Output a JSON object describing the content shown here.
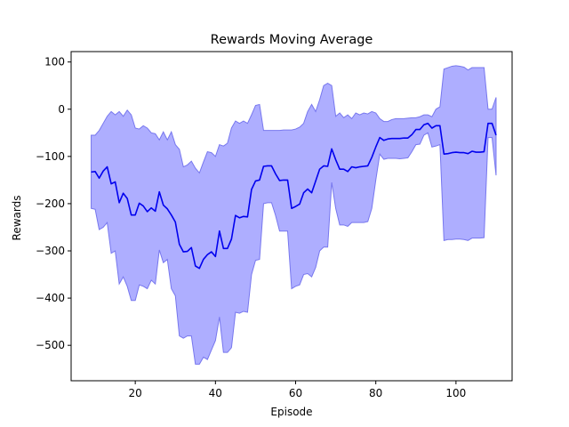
{
  "chart_data": {
    "type": "line",
    "title": "Rewards Moving Average",
    "xlabel": "Episode",
    "ylabel": "Rewards",
    "xlim": [
      4,
      114
    ],
    "ylim": [
      -575,
      122
    ],
    "xticks": [
      20,
      40,
      60,
      80,
      100
    ],
    "yticks": [
      -500,
      -400,
      -300,
      -200,
      -100,
      0,
      100
    ],
    "grid": false,
    "legend": "none",
    "colors": {
      "line": "#0000ee",
      "band_fill": "#aaaaff",
      "band_edge": "#7777ee"
    },
    "x": [
      9,
      10,
      11,
      12,
      13,
      14,
      15,
      16,
      17,
      18,
      19,
      20,
      21,
      22,
      23,
      24,
      25,
      26,
      27,
      28,
      29,
      30,
      31,
      32,
      33,
      34,
      35,
      36,
      37,
      38,
      39,
      40,
      41,
      42,
      43,
      44,
      45,
      46,
      47,
      48,
      49,
      50,
      51,
      52,
      53,
      54,
      55,
      56,
      57,
      58,
      59,
      60,
      61,
      62,
      63,
      64,
      65,
      66,
      67,
      68,
      69,
      70,
      71,
      72,
      73,
      74,
      75,
      76,
      77,
      78,
      79,
      80,
      81,
      82,
      83,
      84,
      85,
      86,
      87,
      88,
      89,
      90,
      91,
      92,
      93,
      94,
      95,
      96,
      97,
      98,
      99,
      100,
      101,
      102,
      103,
      104,
      105,
      106,
      107,
      108,
      109,
      110
    ],
    "series": [
      {
        "values": [
          -133,
          -132,
          -146,
          -131,
          -122,
          -158,
          -154,
          -198,
          -178,
          -189,
          -224,
          -224,
          -199,
          -205,
          -217,
          -209,
          -216,
          -175,
          -203,
          -211,
          -224,
          -239,
          -286,
          -302,
          -301,
          -293,
          -332,
          -337,
          -318,
          -308,
          -302,
          -312,
          -258,
          -295,
          -295,
          -275,
          -225,
          -230,
          -227,
          -228,
          -170,
          -152,
          -150,
          -121,
          -120,
          -120,
          -137,
          -151,
          -150,
          -150,
          -210,
          -206,
          -201,
          -177,
          -169,
          -177,
          -152,
          -127,
          -120,
          -121,
          -84,
          -107,
          -127,
          -127,
          -132,
          -122,
          -124,
          -122,
          -121,
          -120,
          -102,
          -80,
          -60,
          -66,
          -63,
          -62,
          -62,
          -62,
          -61,
          -61,
          -54,
          -43,
          -43,
          -33,
          -30,
          -40,
          -35,
          -35,
          -95,
          -94,
          -92,
          -91,
          -92,
          -92,
          -94,
          -89,
          -91,
          -91,
          -90,
          -30,
          -30,
          -55
        ],
        "upper": [
          -55,
          -55,
          -45,
          -30,
          -15,
          -5,
          -12,
          -5,
          -15,
          -2,
          -12,
          -40,
          -42,
          -35,
          -40,
          -50,
          -52,
          -65,
          -48,
          -65,
          -48,
          -75,
          -85,
          -122,
          -118,
          -110,
          -125,
          -135,
          -112,
          -90,
          -92,
          -100,
          -75,
          -78,
          -72,
          -40,
          -25,
          -30,
          -25,
          -30,
          -12,
          8,
          10,
          -45,
          -45,
          -45,
          -45,
          -45,
          -44,
          -44,
          -44,
          -42,
          -38,
          -30,
          -5,
          10,
          -5,
          20,
          50,
          55,
          50,
          -15,
          -8,
          -18,
          -12,
          -20,
          -8,
          -12,
          -8,
          -10,
          -5,
          -8,
          -20,
          -26,
          -26,
          -22,
          -20,
          -20,
          -20,
          -19,
          -18,
          -18,
          -16,
          -12,
          -12,
          -16,
          0,
          5,
          85,
          88,
          91,
          92,
          91,
          89,
          83,
          88,
          88,
          88,
          88,
          0,
          0,
          25
        ],
        "lower": [
          -210,
          -212,
          -255,
          -250,
          -240,
          -305,
          -300,
          -370,
          -355,
          -375,
          -405,
          -405,
          -372,
          -375,
          -380,
          -362,
          -370,
          -298,
          -325,
          -318,
          -380,
          -395,
          -480,
          -485,
          -480,
          -480,
          -540,
          -540,
          -525,
          -530,
          -510,
          -490,
          -440,
          -515,
          -515,
          -505,
          -430,
          -432,
          -428,
          -430,
          -350,
          -320,
          -318,
          -200,
          -198,
          -198,
          -225,
          -258,
          -258,
          -258,
          -380,
          -375,
          -372,
          -350,
          -348,
          -355,
          -335,
          -300,
          -292,
          -292,
          -155,
          -210,
          -245,
          -245,
          -248,
          -240,
          -240,
          -240,
          -240,
          -238,
          -210,
          -150,
          -95,
          -106,
          -104,
          -104,
          -104,
          -105,
          -104,
          -103,
          -90,
          -75,
          -74,
          -55,
          -50,
          -80,
          -78,
          -75,
          -278,
          -276,
          -276,
          -275,
          -275,
          -276,
          -278,
          -273,
          -273,
          -273,
          -272,
          -60,
          -60,
          -140
        ]
      }
    ]
  }
}
